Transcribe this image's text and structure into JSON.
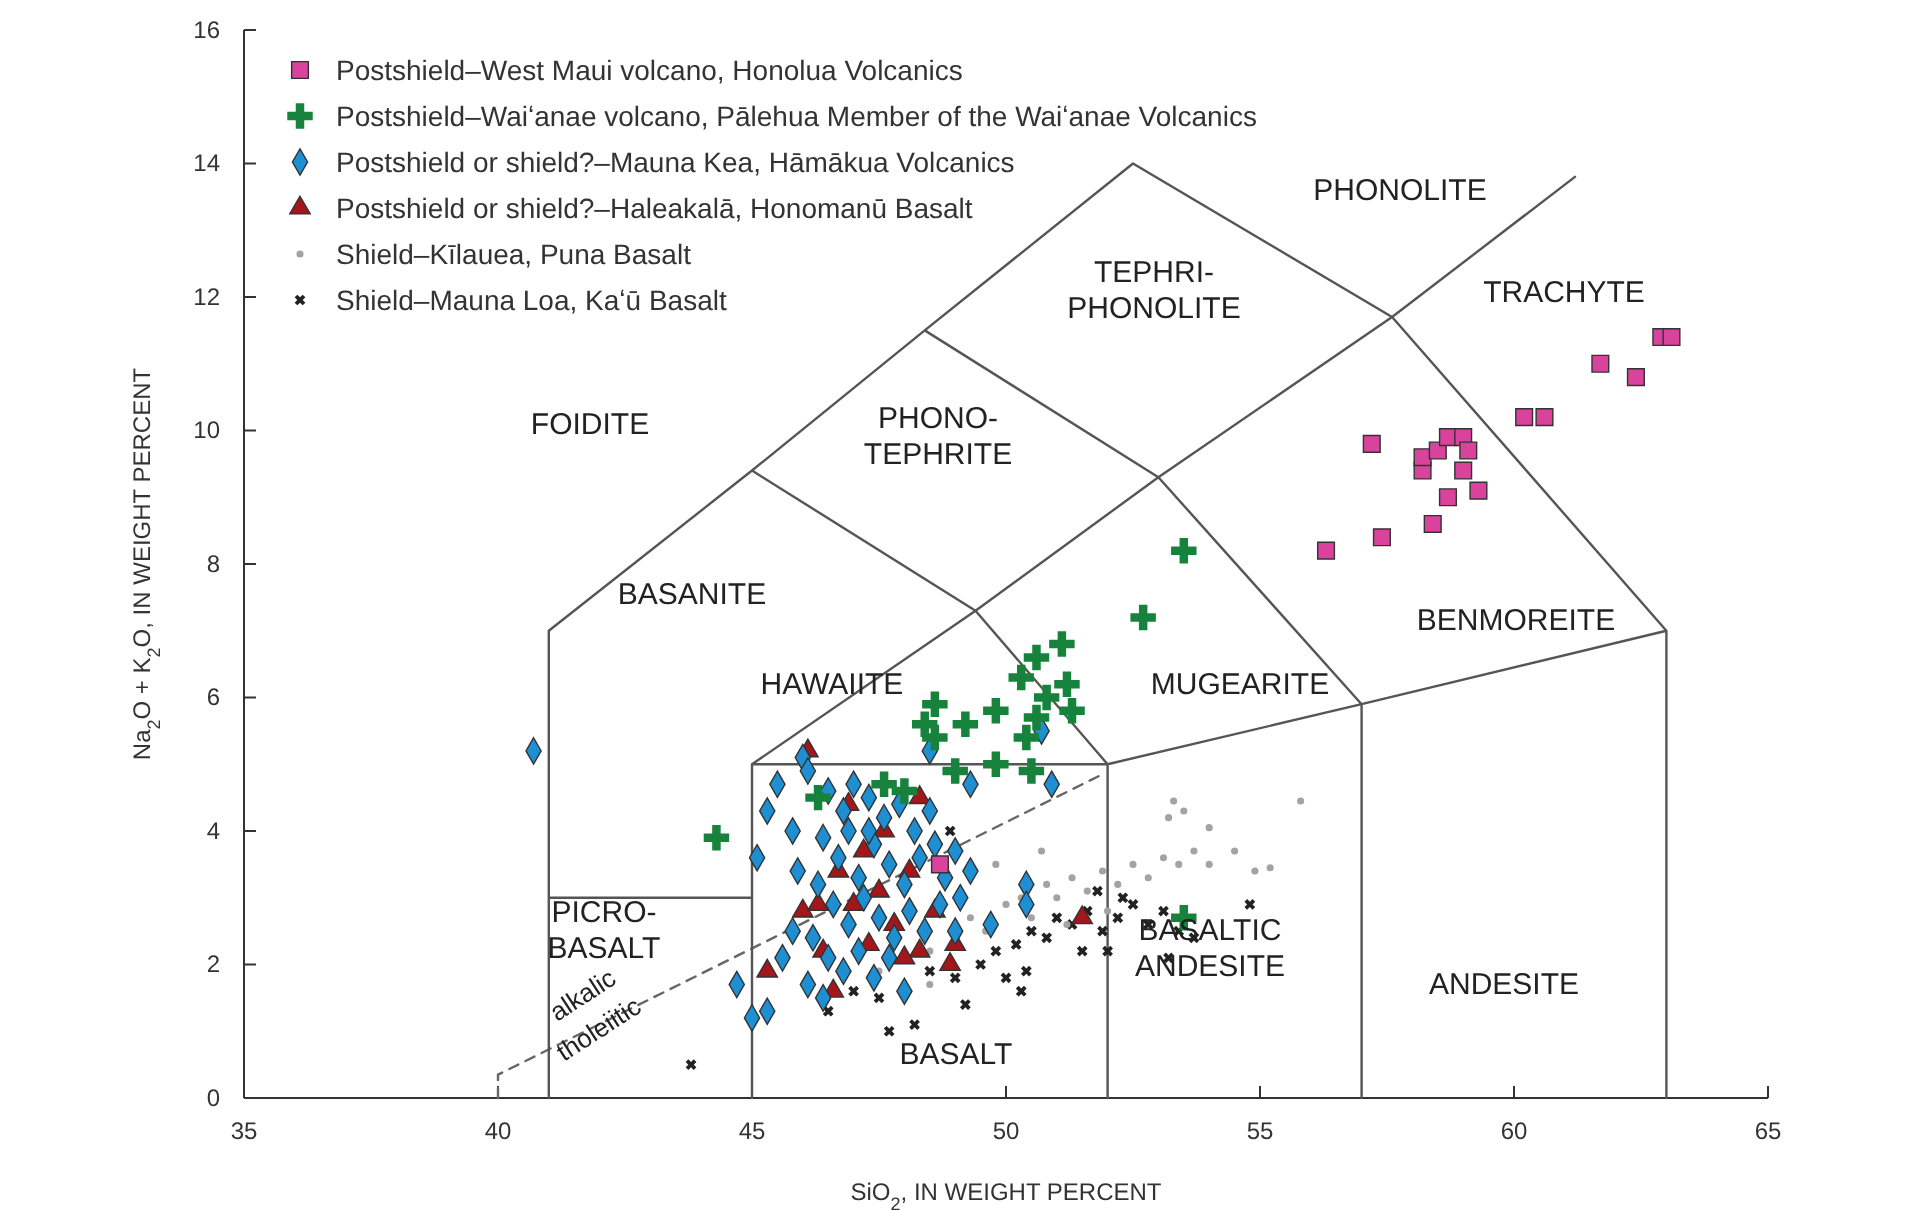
{
  "chart_data": {
    "type": "scatter",
    "xlabel": "SiO$_{2}$, IN WEIGHT PERCENT",
    "ylabel": "Na$_{2}$O + K$_{2}$O, IN WEIGHT PERCENT",
    "xlim": [
      35,
      65
    ],
    "ylim": [
      0,
      16
    ],
    "xticks": [
      35,
      40,
      45,
      50,
      55,
      60,
      65
    ],
    "yticks": [
      0,
      2,
      4,
      6,
      8,
      10,
      12,
      14,
      16
    ],
    "grid": false,
    "legend": "top left",
    "series": [
      {
        "name": "Postshield–West Maui volcano, Honolua Volcanics",
        "marker": "square",
        "color": "#d9439c",
        "x": [
          56.3,
          57.4,
          58.4,
          58.7,
          59.3,
          59.0,
          58.2,
          58.2,
          58.5,
          57.2,
          58.7,
          59.0,
          59.1,
          60.2,
          60.6,
          61.7,
          62.4,
          62.9,
          63.1,
          48.7
        ],
        "values": [
          8.2,
          8.4,
          8.6,
          9.0,
          9.1,
          9.4,
          9.4,
          9.6,
          9.7,
          9.8,
          9.9,
          9.9,
          9.7,
          10.2,
          10.2,
          11.0,
          10.8,
          11.4,
          11.4,
          3.5
        ]
      },
      {
        "name": "Postshield–Waiʻanae volcano, Pālehua Member of the Waiʻanae Volcanics",
        "marker": "cross",
        "color": "#17823c",
        "x": [
          53.5,
          52.7,
          51.1,
          50.6,
          50.3,
          51.2,
          51.3,
          50.8,
          50.6,
          50.4,
          49.8,
          49.2,
          48.6,
          48.4,
          48.6,
          49.8,
          49.0,
          48.0,
          47.6,
          53.5,
          46.3,
          44.3,
          50.5
        ],
        "values": [
          8.2,
          7.2,
          6.8,
          6.6,
          6.3,
          6.2,
          5.8,
          6.0,
          5.7,
          5.4,
          5.8,
          5.6,
          5.9,
          5.6,
          5.4,
          5.0,
          4.9,
          4.6,
          4.7,
          2.7,
          4.5,
          3.9,
          4.9
        ]
      },
      {
        "name": "Postshield or shield?–Mauna Kea, Hāmākua Volcanics",
        "marker": "diamond",
        "color": "#1e8fd2",
        "x": [
          40.7,
          46.0,
          46.1,
          45.5,
          45.3,
          45.1,
          44.7,
          45.3,
          45.0,
          46.1,
          45.8,
          45.6,
          50.9,
          50.7,
          48.5,
          49.3,
          50.4,
          50.4,
          46.5,
          46.8,
          47.0,
          47.3,
          47.6,
          47.9,
          48.2,
          48.6,
          46.4,
          46.7,
          47.1,
          47.4,
          47.7,
          48.0,
          48.3,
          48.8,
          49.1,
          46.3,
          46.6,
          46.9,
          47.2,
          47.5,
          47.8,
          48.1,
          48.4,
          48.7,
          49.0,
          46.2,
          46.5,
          46.8,
          47.1,
          47.4,
          47.7,
          48.0,
          46.4,
          46.9,
          47.3,
          48.5,
          49.3,
          49.0,
          49.7,
          45.9,
          45.8
        ],
        "values": [
          5.2,
          5.1,
          4.9,
          4.7,
          4.3,
          3.6,
          1.7,
          1.3,
          1.2,
          1.7,
          2.5,
          2.1,
          4.7,
          5.5,
          5.2,
          4.7,
          3.2,
          2.9,
          4.6,
          4.3,
          4.7,
          4.5,
          4.2,
          4.4,
          4.0,
          3.8,
          3.9,
          3.6,
          3.3,
          3.8,
          3.5,
          3.2,
          3.6,
          3.3,
          3.0,
          3.2,
          2.9,
          2.6,
          3.0,
          2.7,
          2.4,
          2.8,
          2.5,
          2.9,
          3.7,
          2.4,
          2.1,
          1.9,
          2.2,
          1.8,
          2.1,
          1.6,
          1.5,
          4.0,
          4.0,
          4.3,
          3.4,
          2.5,
          2.6,
          3.4,
          4.0
        ]
      },
      {
        "name": "Postshield or shield?–Haleakalā, Honomanū Basalt",
        "marker": "triangle",
        "color": "#a5161b",
        "x": [
          46.1,
          45.3,
          46.0,
          51.5,
          46.4,
          46.7,
          47.0,
          47.2,
          47.5,
          47.8,
          48.1,
          48.3,
          48.6,
          46.6,
          47.3,
          48.9,
          47.6,
          46.9,
          48.0,
          46.3,
          48.3,
          49.0
        ],
        "values": [
          5.2,
          1.9,
          2.8,
          2.7,
          2.2,
          3.4,
          2.9,
          3.7,
          3.1,
          2.6,
          3.4,
          2.2,
          2.8,
          1.6,
          2.3,
          2.0,
          4.0,
          4.4,
          2.1,
          2.9,
          4.5,
          2.3
        ]
      },
      {
        "name": "Shield–Kīlauea, Puna Basalt",
        "marker": "circle",
        "color": "#a3a3a3",
        "x": [
          47.5,
          48.5,
          49.3,
          49.6,
          50.0,
          50.3,
          50.5,
          50.8,
          51.0,
          51.3,
          51.6,
          51.9,
          52.2,
          52.5,
          52.8,
          53.1,
          53.4,
          53.7,
          54.0,
          54.5,
          53.2,
          53.5,
          54.0,
          55.8,
          55.2,
          50.7,
          49.8,
          48.5,
          51.2,
          52.0,
          54.9,
          53.3
        ],
        "values": [
          1.9,
          2.2,
          2.7,
          2.5,
          2.9,
          3.0,
          2.7,
          3.2,
          3.0,
          3.3,
          3.1,
          3.4,
          3.2,
          3.5,
          3.3,
          3.6,
          3.5,
          3.7,
          3.5,
          3.7,
          4.2,
          4.3,
          4.05,
          4.45,
          3.45,
          3.7,
          3.5,
          1.7,
          2.6,
          2.8,
          3.4,
          4.45
        ]
      },
      {
        "name": "Shield–Mauna Loa, Kaʻū Basalt",
        "marker": "cross",
        "color": "#222222",
        "x": [
          43.8,
          46.5,
          47.0,
          47.5,
          48.5,
          49.0,
          49.5,
          49.8,
          50.2,
          50.5,
          50.8,
          51.0,
          51.3,
          51.6,
          51.9,
          52.2,
          52.5,
          52.8,
          53.1,
          53.4,
          53.7,
          51.5,
          52.0,
          50.0,
          49.2,
          48.2,
          47.7,
          50.4,
          51.8,
          52.3,
          53.2,
          54.8,
          48.9,
          50.3
        ],
        "values": [
          0.5,
          1.3,
          1.6,
          1.5,
          1.9,
          1.8,
          2.0,
          2.2,
          2.3,
          2.5,
          2.4,
          2.7,
          2.6,
          2.8,
          2.5,
          2.7,
          2.9,
          2.6,
          2.8,
          2.5,
          2.4,
          2.2,
          2.2,
          1.8,
          1.4,
          1.1,
          1.0,
          1.9,
          3.1,
          3.0,
          2.1,
          2.9,
          4.0,
          1.6
        ]
      },
      {
        "type": "line",
        "line_style": "solid",
        "color": "#555555",
        "x": [
          41,
          41,
          45,
          48.4,
          52.5,
          57.6,
          63,
          63,
          null,
          57.6,
          61.2,
          null,
          41,
          45,
          null,
          45,
          45,
          52,
          52,
          null,
          45,
          49.4,
          53,
          57.6,
          null,
          52,
          57,
          63,
          null,
          57,
          57,
          null,
          49.4,
          52,
          null,
          53,
          57,
          null,
          45,
          49.4,
          null,
          48.4,
          53
        ],
        "values": [
          0,
          7,
          9.4,
          11.5,
          14,
          11.7,
          7,
          0,
          null,
          11.7,
          13.8,
          null,
          3,
          3,
          null,
          0,
          5,
          5,
          0,
          null,
          5,
          7.3,
          9.3,
          11.7,
          null,
          5,
          5.9,
          7,
          null,
          0,
          5.9,
          null,
          7.3,
          5,
          null,
          9.3,
          5.9,
          null,
          9.4,
          7.3,
          null,
          11.5,
          9.3
        ]
      },
      {
        "type": "line",
        "line_style": "dashed",
        "color": "#666666",
        "x": [
          40,
          40,
          51.9
        ],
        "values": [
          0,
          0.35,
          4.85
        ]
      }
    ],
    "annotations": [
      "FOIDITE",
      "BASANITE",
      "PICRO-\nBASALT",
      "BASALT",
      "BASALTIC\nANDESITE",
      "ANDESITE",
      "HAWAIITE",
      "MUGEARITE",
      "BENMOREITE",
      "PHONO-\nTEPHRITE",
      "TEPHRI-\nPHONOLITE",
      "PHONOLITE",
      "TRACHYTE",
      "alkalic",
      "tholeiitic"
    ]
  }
}
